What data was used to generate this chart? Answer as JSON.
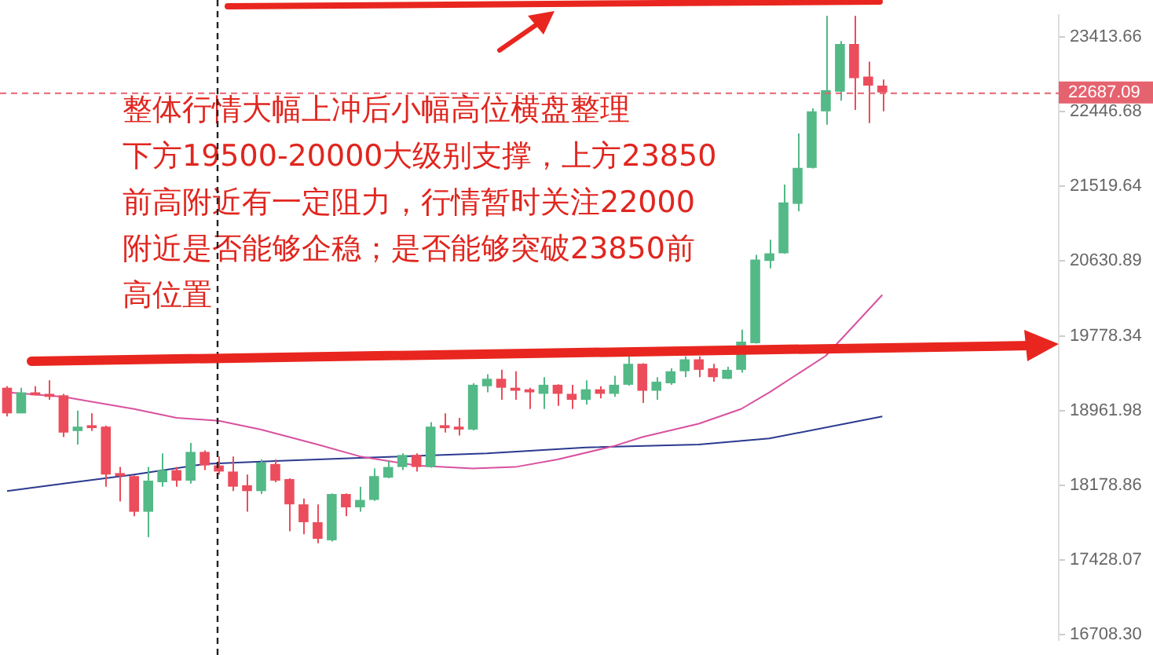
{
  "chart_data": {
    "type": "candlestick",
    "categories": [
      null,
      null,
      null,
      null,
      null,
      null,
      null,
      null,
      null,
      null,
      null,
      null,
      null,
      null,
      null,
      null,
      null,
      null,
      null,
      null,
      null,
      null,
      null,
      null,
      null,
      null,
      null,
      null,
      null,
      null,
      null,
      null,
      null,
      null,
      null,
      null,
      null,
      null,
      null,
      null,
      null,
      null,
      null,
      null,
      null,
      null,
      null,
      null,
      null,
      null,
      null,
      null,
      null,
      null,
      null,
      null,
      null,
      null,
      null,
      null,
      null,
      null,
      null,
      null,
      null,
      null,
      null,
      null,
      null,
      null,
      null,
      null,
      null,
      null,
      null
    ],
    "ohlc": [
      [
        19207,
        19223,
        18899,
        18931
      ],
      [
        18931,
        19207,
        18931,
        19157
      ],
      [
        19157,
        19223,
        19125,
        19125
      ],
      [
        19141,
        19288,
        19076,
        19108
      ],
      [
        19125,
        19140,
        18680,
        18727
      ],
      [
        18743,
        18962,
        18602,
        18790
      ],
      [
        18805,
        18931,
        18743,
        18774
      ],
      [
        18790,
        18800,
        18164,
        18289
      ],
      [
        18304,
        18367,
        18014,
        18273
      ],
      [
        18273,
        18280,
        17864,
        17909
      ],
      [
        17909,
        18367,
        17653,
        18226
      ],
      [
        18210,
        18508,
        18164,
        18335
      ],
      [
        18335,
        18367,
        18164,
        18226
      ],
      [
        18226,
        18617,
        18195,
        18524
      ],
      [
        18524,
        18539,
        18335,
        18383
      ],
      [
        18383,
        18477,
        18289,
        18320
      ],
      [
        18320,
        18477,
        18119,
        18164
      ],
      [
        18179,
        18289,
        17909,
        18119
      ],
      [
        18119,
        18445,
        18089,
        18414
      ],
      [
        18398,
        18445,
        18210,
        18226
      ],
      [
        18242,
        18250,
        17713,
        17984
      ],
      [
        17984,
        18044,
        17683,
        17804
      ],
      [
        17804,
        17984,
        17593,
        17638
      ],
      [
        17623,
        18095,
        17610,
        18089
      ],
      [
        18089,
        18095,
        17864,
        17954
      ],
      [
        17954,
        18164,
        17909,
        18029
      ],
      [
        18029,
        18351,
        18020,
        18273
      ],
      [
        18257,
        18430,
        18250,
        18367
      ],
      [
        18367,
        18508,
        18335,
        18492
      ],
      [
        18492,
        18508,
        18320,
        18367
      ],
      [
        18367,
        18837,
        18360,
        18790
      ],
      [
        18805,
        18931,
        18727,
        18774
      ],
      [
        18790,
        18884,
        18696,
        18759
      ],
      [
        18759,
        19255,
        18750,
        19239
      ],
      [
        19223,
        19353,
        19157,
        19304
      ],
      [
        19304,
        19402,
        19076,
        19207
      ],
      [
        19207,
        19386,
        19076,
        19174
      ],
      [
        19190,
        19207,
        18978,
        19157
      ],
      [
        19141,
        19321,
        18978,
        19239
      ],
      [
        19239,
        19245,
        19011,
        19141
      ],
      [
        19141,
        19239,
        18978,
        19076
      ],
      [
        19076,
        19288,
        19027,
        19190
      ],
      [
        19190,
        19223,
        19092,
        19141
      ],
      [
        19141,
        19337,
        19108,
        19239
      ],
      [
        19239,
        19549,
        19230,
        19468
      ],
      [
        19468,
        19475,
        19043,
        19174
      ],
      [
        19174,
        19321,
        19076,
        19272
      ],
      [
        19255,
        19419,
        19239,
        19386
      ],
      [
        19386,
        19549,
        19321,
        19517
      ],
      [
        19517,
        19549,
        19321,
        19402
      ],
      [
        19419,
        19468,
        19272,
        19321
      ],
      [
        19304,
        19435,
        19300,
        19402
      ],
      [
        19402,
        19846,
        19370,
        19713
      ],
      [
        19696,
        20702,
        19690,
        20648
      ],
      [
        20631,
        20880,
        20545,
        20720
      ],
      [
        20720,
        21538,
        20715,
        21324
      ],
      [
        21306,
        22169,
        21217,
        21742
      ],
      [
        21742,
        22484,
        21735,
        22447
      ],
      [
        22447,
        23690,
        22280,
        22717
      ],
      [
        22698,
        23356,
        22582,
        23317
      ],
      [
        23317,
        23690,
        22465,
        22872
      ],
      [
        22891,
        23085,
        22298,
        22775
      ],
      [
        22775,
        22853,
        22447,
        22687.09
      ],
      null,
      null,
      null,
      null,
      null,
      null,
      null,
      null,
      null,
      null,
      null,
      null
    ],
    "colors": [
      "#eb4d5c",
      "#53b987",
      "#eb4d5c",
      "#eb4d5c",
      "#eb4d5c",
      "#53b987",
      "#eb4d5c",
      "#eb4d5c",
      "#eb4d5c",
      "#eb4d5c",
      "#53b987",
      "#53b987",
      "#eb4d5c",
      "#53b987",
      "#eb4d5c",
      "#eb4d5c",
      "#eb4d5c",
      "#eb4d5c",
      "#53b987",
      "#eb4d5c",
      "#eb4d5c",
      "#eb4d5c",
      "#eb4d5c",
      "#53b987",
      "#eb4d5c",
      "#53b987",
      "#53b987",
      "#53b987",
      "#53b987",
      "#eb4d5c",
      "#53b987",
      "#eb4d5c",
      "#eb4d5c",
      "#53b987",
      "#53b987",
      "#eb4d5c",
      "#eb4d5c",
      "#eb4d5c",
      "#53b987",
      "#eb4d5c",
      "#eb4d5c",
      "#53b987",
      "#eb4d5c",
      "#53b987",
      "#53b987",
      "#eb4d5c",
      "#53b987",
      "#53b987",
      "#53b987",
      "#eb4d5c",
      "#eb4d5c",
      "#53b987",
      "#53b987",
      "#53b987",
      "#53b987",
      "#53b987",
      "#53b987",
      "#53b987",
      "#53b987",
      "#53b987",
      "#eb4d5c",
      "#eb4d5c",
      "#eb4d5c",
      null,
      null,
      null,
      null,
      null,
      null,
      null,
      null,
      null,
      null,
      null,
      null
    ],
    "series": [
      {
        "type": "line",
        "color": "#d9519f",
        "values": [
          19157,
          null,
          null,
          null,
          19108,
          null,
          null,
          null,
          null,
          18978,
          null,
          null,
          18884,
          null,
          null,
          18852,
          null,
          null,
          18759,
          null,
          null,
          null,
          18602,
          null,
          null,
          18477,
          null,
          null,
          null,
          18383,
          null,
          null,
          null,
          18351,
          null,
          null,
          18367,
          null,
          null,
          18445,
          null,
          null,
          null,
          18586,
          null,
          18680,
          null,
          null,
          null,
          18821,
          null,
          null,
          18978,
          null,
          19157,
          null,
          null,
          null,
          19556,
          null,
          null,
          null,
          20239,
          null,
          null,
          null,
          null,
          null,
          null,
          null,
          null,
          null,
          null,
          null,
          null
        ]
      },
      {
        "type": "line",
        "color": "#2b3a8f",
        "values": [
          18119,
          null,
          null,
          null,
          18195,
          null,
          null,
          null,
          null,
          18289,
          null,
          null,
          null,
          null,
          18398,
          null,
          null,
          null,
          null,
          18430,
          null,
          null,
          null,
          null,
          null,
          18461,
          null,
          null,
          null,
          null,
          null,
          null,
          null,
          null,
          18508,
          null,
          null,
          null,
          null,
          null,
          null,
          18571,
          null,
          null,
          null,
          null,
          null,
          null,
          null,
          18602,
          null,
          null,
          null,
          null,
          18665,
          null,
          null,
          null,
          null,
          null,
          null,
          null,
          18899,
          null,
          null,
          null,
          null,
          null,
          null,
          null,
          null,
          null,
          null,
          null,
          null
        ]
      }
    ],
    "ylim": [
      16660,
      23700
    ],
    "yticks": [
      {
        "value": 16708.3,
        "label": "16708.30"
      },
      17428.07,
      18178.86,
      18961.98,
      19778.34,
      20630.89,
      21519.64,
      22446.68,
      23413.66
    ],
    "log": true,
    "tick_labels": "y",
    "ref_lines": [
      {
        "axis": "y",
        "value": 22687.09,
        "label": "22687.09",
        "color": "#e5636f",
        "line_style": "dashed"
      }
    ],
    "annotations": [
      "整体行情大幅上冲后小幅高位横盘整理",
      "下方19500-20000大级别支撑，上方23850",
      "前高附近有一定阻力，行情暂时关注22000",
      "附近是否能够企稳；是否能够突破23850前",
      "高位置"
    ]
  }
}
